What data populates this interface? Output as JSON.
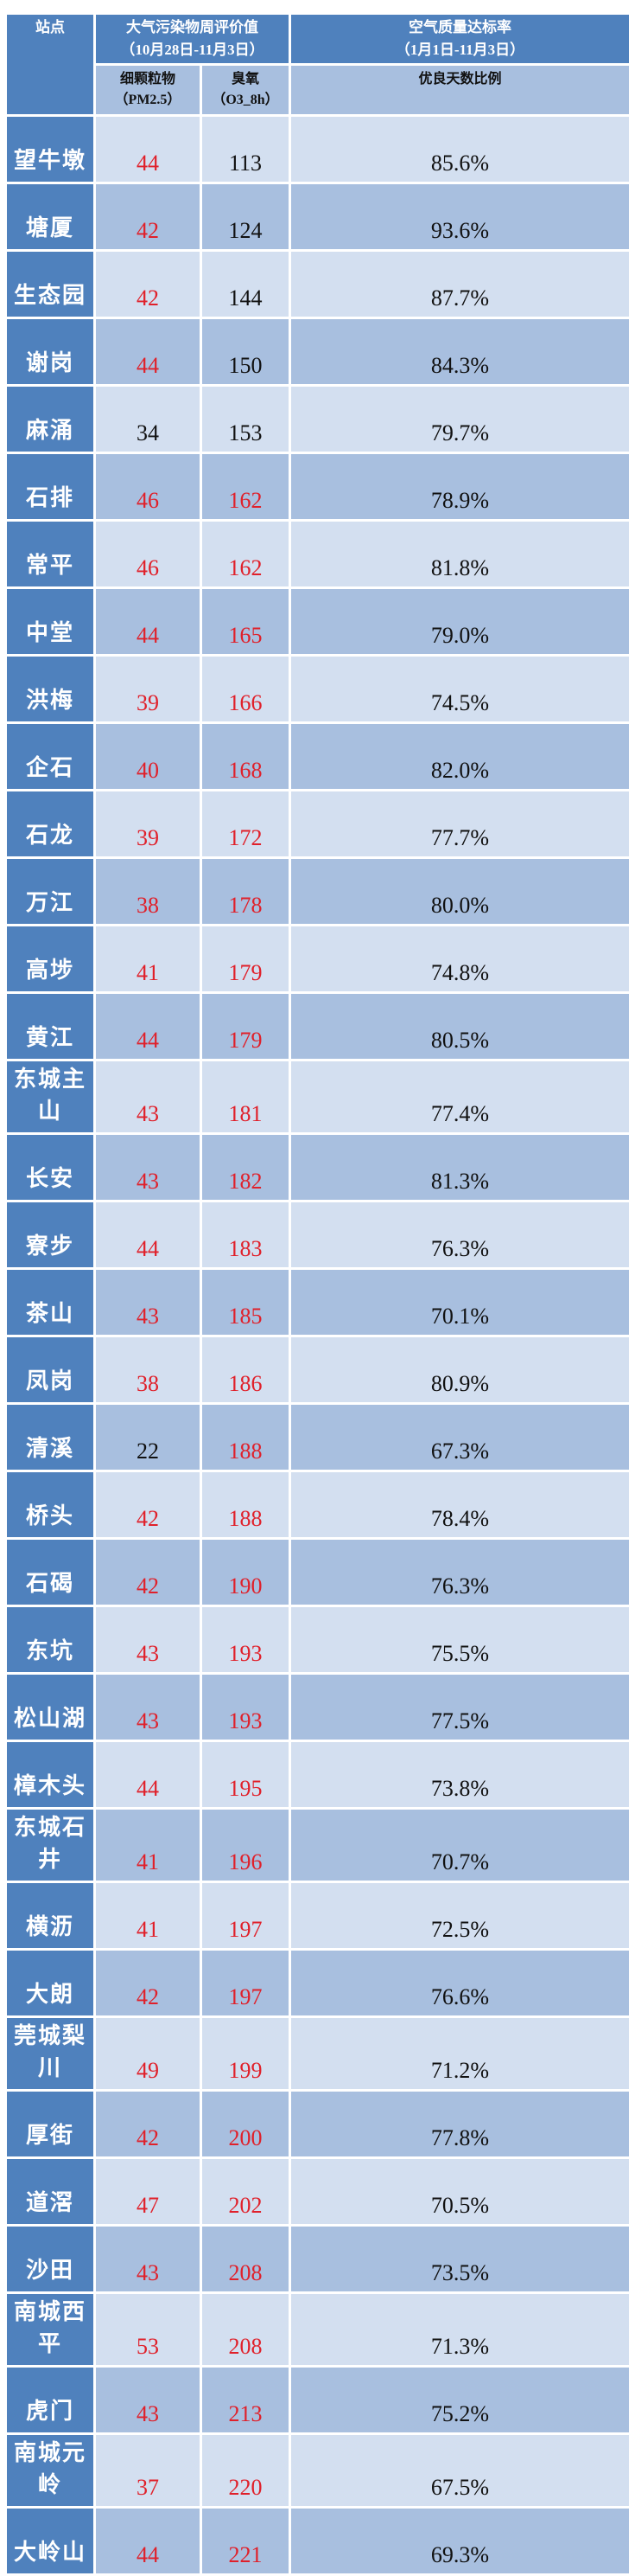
{
  "header": {
    "station": "站点",
    "pollutant_title": "大气污染物周评价值",
    "pollutant_period": "（10月28日-11月3日）",
    "quality_title": "空气质量达标率",
    "quality_period": "（1月1日-11月3日）",
    "pm25": "细颗粒物（PM2.5）",
    "o3": "臭氧（O3_8h）",
    "ratio": "优良天数比例"
  },
  "colors": {
    "header_bg": "#4f81bd",
    "row_light": "#d3dff0",
    "row_dark": "#a8bfdf",
    "highlight_text": "#e0202a",
    "normal_text": "#111111"
  },
  "rows": [
    {
      "station": "望牛墩",
      "pm25": "44",
      "o3": "113",
      "ratio": "85.6%",
      "pm25_red": true,
      "o3_red": false
    },
    {
      "station": "塘厦",
      "pm25": "42",
      "o3": "124",
      "ratio": "93.6%",
      "pm25_red": true,
      "o3_red": false
    },
    {
      "station": "生态园",
      "pm25": "42",
      "o3": "144",
      "ratio": "87.7%",
      "pm25_red": true,
      "o3_red": false
    },
    {
      "station": "谢岗",
      "pm25": "44",
      "o3": "150",
      "ratio": "84.3%",
      "pm25_red": true,
      "o3_red": false
    },
    {
      "station": "麻涌",
      "pm25": "34",
      "o3": "153",
      "ratio": "79.7%",
      "pm25_red": false,
      "o3_red": false
    },
    {
      "station": "石排",
      "pm25": "46",
      "o3": "162",
      "ratio": "78.9%",
      "pm25_red": true,
      "o3_red": true
    },
    {
      "station": "常平",
      "pm25": "46",
      "o3": "162",
      "ratio": "81.8%",
      "pm25_red": true,
      "o3_red": true
    },
    {
      "station": "中堂",
      "pm25": "44",
      "o3": "165",
      "ratio": "79.0%",
      "pm25_red": true,
      "o3_red": true
    },
    {
      "station": "洪梅",
      "pm25": "39",
      "o3": "166",
      "ratio": "74.5%",
      "pm25_red": true,
      "o3_red": true
    },
    {
      "station": "企石",
      "pm25": "40",
      "o3": "168",
      "ratio": "82.0%",
      "pm25_red": true,
      "o3_red": true
    },
    {
      "station": "石龙",
      "pm25": "39",
      "o3": "172",
      "ratio": "77.7%",
      "pm25_red": true,
      "o3_red": true
    },
    {
      "station": "万江",
      "pm25": "38",
      "o3": "178",
      "ratio": "80.0%",
      "pm25_red": true,
      "o3_red": true
    },
    {
      "station": "高埗",
      "pm25": "41",
      "o3": "179",
      "ratio": "74.8%",
      "pm25_red": true,
      "o3_red": true
    },
    {
      "station": "黄江",
      "pm25": "44",
      "o3": "179",
      "ratio": "80.5%",
      "pm25_red": true,
      "o3_red": true
    },
    {
      "station": "东城主山",
      "pm25": "43",
      "o3": "181",
      "ratio": "77.4%",
      "pm25_red": true,
      "o3_red": true
    },
    {
      "station": "长安",
      "pm25": "43",
      "o3": "182",
      "ratio": "81.3%",
      "pm25_red": true,
      "o3_red": true
    },
    {
      "station": "寮步",
      "pm25": "44",
      "o3": "183",
      "ratio": "76.3%",
      "pm25_red": true,
      "o3_red": true
    },
    {
      "station": "茶山",
      "pm25": "43",
      "o3": "185",
      "ratio": "70.1%",
      "pm25_red": true,
      "o3_red": true
    },
    {
      "station": "凤岗",
      "pm25": "38",
      "o3": "186",
      "ratio": "80.9%",
      "pm25_red": true,
      "o3_red": true
    },
    {
      "station": "清溪",
      "pm25": "22",
      "o3": "188",
      "ratio": "67.3%",
      "pm25_red": false,
      "o3_red": true
    },
    {
      "station": "桥头",
      "pm25": "42",
      "o3": "188",
      "ratio": "78.4%",
      "pm25_red": true,
      "o3_red": true
    },
    {
      "station": "石碣",
      "pm25": "42",
      "o3": "190",
      "ratio": "76.3%",
      "pm25_red": true,
      "o3_red": true
    },
    {
      "station": "东坑",
      "pm25": "43",
      "o3": "193",
      "ratio": "75.5%",
      "pm25_red": true,
      "o3_red": true
    },
    {
      "station": "松山湖",
      "pm25": "43",
      "o3": "193",
      "ratio": "77.5%",
      "pm25_red": true,
      "o3_red": true
    },
    {
      "station": "樟木头",
      "pm25": "44",
      "o3": "195",
      "ratio": "73.8%",
      "pm25_red": true,
      "o3_red": true
    },
    {
      "station": "东城石井",
      "pm25": "41",
      "o3": "196",
      "ratio": "70.7%",
      "pm25_red": true,
      "o3_red": true
    },
    {
      "station": "横沥",
      "pm25": "41",
      "o3": "197",
      "ratio": "72.5%",
      "pm25_red": true,
      "o3_red": true
    },
    {
      "station": "大朗",
      "pm25": "42",
      "o3": "197",
      "ratio": "76.6%",
      "pm25_red": true,
      "o3_red": true
    },
    {
      "station": "莞城梨川",
      "pm25": "49",
      "o3": "199",
      "ratio": "71.2%",
      "pm25_red": true,
      "o3_red": true
    },
    {
      "station": "厚街",
      "pm25": "42",
      "o3": "200",
      "ratio": "77.8%",
      "pm25_red": true,
      "o3_red": true
    },
    {
      "station": "道滘",
      "pm25": "47",
      "o3": "202",
      "ratio": "70.5%",
      "pm25_red": true,
      "o3_red": true
    },
    {
      "station": "沙田",
      "pm25": "43",
      "o3": "208",
      "ratio": "73.5%",
      "pm25_red": true,
      "o3_red": true
    },
    {
      "station": "南城西平",
      "pm25": "53",
      "o3": "208",
      "ratio": "71.3%",
      "pm25_red": true,
      "o3_red": true
    },
    {
      "station": "虎门",
      "pm25": "43",
      "o3": "213",
      "ratio": "75.2%",
      "pm25_red": true,
      "o3_red": true
    },
    {
      "station": "南城元岭",
      "pm25": "37",
      "o3": "220",
      "ratio": "67.5%",
      "pm25_red": true,
      "o3_red": true
    },
    {
      "station": "大岭山",
      "pm25": "44",
      "o3": "221",
      "ratio": "69.3%",
      "pm25_red": true,
      "o3_red": true
    }
  ]
}
